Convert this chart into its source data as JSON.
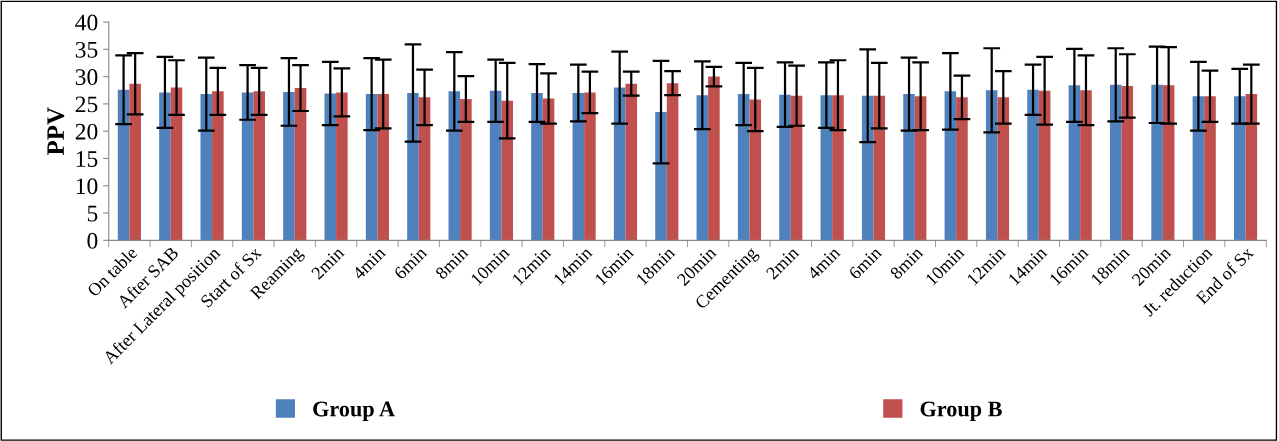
{
  "chart_data": {
    "type": "bar",
    "ylabel": "PPV",
    "categories": [
      "On table",
      "After SAB",
      "After Lateral position",
      "Start of Sx",
      "Reaming",
      "2min",
      "4min",
      "6min",
      "8min",
      "10min",
      "12min",
      "14min",
      "16min",
      "18min",
      "20min",
      "Cementing",
      "2min",
      "4min",
      "6min",
      "8min",
      "10min",
      "12min",
      "14min",
      "16min",
      "18min",
      "20min",
      "Jt. reduction",
      "End of Sx"
    ],
    "series": [
      {
        "name": "Group A",
        "color": "#4f81bd",
        "values": [
          27.6,
          27.1,
          26.8,
          27.1,
          27.2,
          26.9,
          26.8,
          27.0,
          27.3,
          27.4,
          27.0,
          27.0,
          28.0,
          23.5,
          26.6,
          26.8,
          26.7,
          26.6,
          26.5,
          26.8,
          27.3,
          27.5,
          27.6,
          28.4,
          28.5,
          28.5,
          26.4,
          26.4
        ],
        "errors": [
          6.3,
          6.5,
          6.7,
          5.0,
          6.2,
          5.8,
          6.6,
          8.9,
          7.2,
          5.7,
          5.3,
          5.2,
          6.6,
          9.4,
          6.2,
          5.7,
          5.9,
          6.0,
          8.5,
          6.7,
          7.0,
          7.7,
          4.6,
          6.7,
          6.7,
          7.0,
          6.3,
          5.0
        ]
      },
      {
        "name": "Group B",
        "color": "#c0504d",
        "values": [
          28.7,
          28.0,
          27.3,
          27.3,
          27.9,
          27.1,
          26.8,
          26.2,
          25.9,
          25.6,
          26.0,
          27.1,
          28.7,
          28.8,
          30.0,
          25.8,
          26.5,
          26.6,
          26.5,
          26.4,
          26.2,
          26.2,
          27.4,
          27.5,
          28.3,
          28.4,
          26.4,
          26.8
        ],
        "errors": [
          5.6,
          5.0,
          4.3,
          4.3,
          4.2,
          4.4,
          6.3,
          5.1,
          4.2,
          6.9,
          4.6,
          3.8,
          2.2,
          2.2,
          1.8,
          5.8,
          5.5,
          6.4,
          6.0,
          6.2,
          4.0,
          4.8,
          6.2,
          6.4,
          5.8,
          7.0,
          4.7,
          5.4
        ]
      }
    ],
    "ylim": [
      0,
      40
    ],
    "yticks": [
      0,
      5,
      10,
      15,
      20,
      25,
      30,
      35,
      40
    ],
    "grid": false,
    "legend": "bottom"
  }
}
